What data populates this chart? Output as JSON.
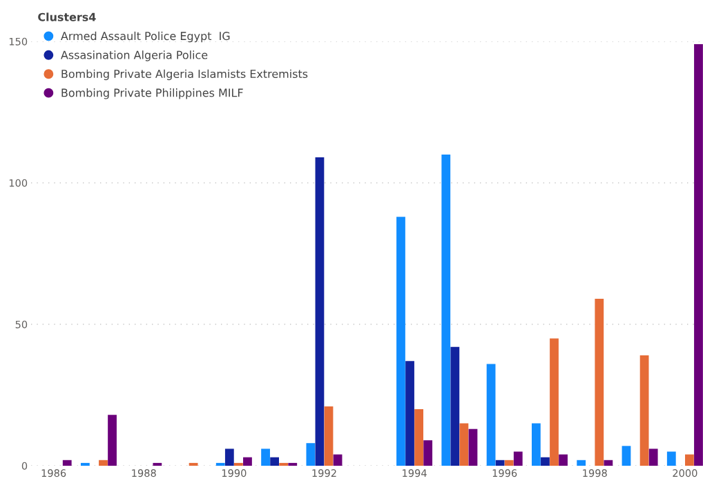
{
  "chart_data": {
    "type": "bar",
    "legend_title": "Clusters4",
    "x": [
      1986,
      1987,
      1988,
      1989,
      1990,
      1991,
      1992,
      1993,
      1994,
      1995,
      1996,
      1997,
      1998,
      1999,
      2000
    ],
    "series": [
      {
        "name": "Armed Assault Police Egypt  IG",
        "color": "#118dff",
        "values": [
          null,
          1,
          null,
          null,
          1,
          6,
          8,
          null,
          88,
          110,
          36,
          15,
          2,
          7,
          5
        ]
      },
      {
        "name": "Assasination Algeria Police",
        "color": "#12239e",
        "values": [
          null,
          null,
          null,
          null,
          6,
          3,
          109,
          null,
          37,
          42,
          2,
          3,
          null,
          null,
          null
        ]
      },
      {
        "name": "Bombing Private Algeria Islamists Extremists",
        "color": "#e66c37",
        "values": [
          null,
          2,
          null,
          1,
          1,
          1,
          21,
          null,
          20,
          15,
          2,
          45,
          59,
          39,
          4
        ]
      },
      {
        "name": "Bombing Private Philippines MILF",
        "color": "#6b007b",
        "values": [
          2,
          18,
          1,
          null,
          3,
          1,
          4,
          null,
          9,
          13,
          5,
          4,
          2,
          6,
          149
        ]
      }
    ],
    "xlim": [
      1985.5,
      2000.4
    ],
    "xticks": [
      1986,
      1988,
      1990,
      1992,
      1994,
      1996,
      1998,
      2000
    ],
    "ylim": [
      0,
      150
    ],
    "yticks": [
      0,
      50,
      100,
      150
    ],
    "grid": "y",
    "legend": "top left"
  }
}
